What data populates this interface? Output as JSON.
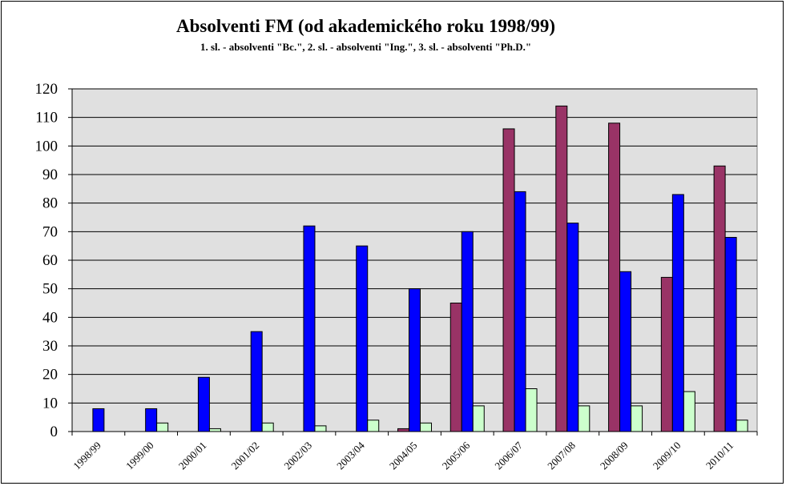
{
  "chart_data": {
    "type": "bar",
    "title": "Absolventi FM (od akademického roku 1998/99)",
    "subtitle": "1. sl. - absolventi \"Bc.\", 2. sl. - absolventi \"Ing.\", 3. sl. - absolventi \"Ph.D.\"",
    "xlabel": "",
    "ylabel": "",
    "ylim": [
      0,
      120
    ],
    "yticks": [
      0,
      10,
      20,
      30,
      40,
      50,
      60,
      70,
      80,
      90,
      100,
      110,
      120
    ],
    "grid": true,
    "legend": "none",
    "categories": [
      "1998/99",
      "1999/00",
      "2000/01",
      "2001/02",
      "2002/03",
      "2003/04",
      "2004/05",
      "2005/06",
      "2006/07",
      "2007/08",
      "2008/09",
      "2009/10",
      "2010/11"
    ],
    "series": [
      {
        "color": "#993366",
        "values": [
          0,
          0,
          0,
          0,
          0,
          0,
          1,
          45,
          106,
          114,
          108,
          54,
          93
        ]
      },
      {
        "color": "#0000ff",
        "values": [
          8,
          8,
          19,
          35,
          72,
          65,
          50,
          70,
          84,
          73,
          56,
          83,
          68
        ]
      },
      {
        "color": "#ccffcc",
        "values": [
          0,
          3,
          1,
          3,
          2,
          4,
          3,
          9,
          15,
          9,
          9,
          14,
          4
        ]
      }
    ],
    "plot_background": "#e0e0e0"
  }
}
